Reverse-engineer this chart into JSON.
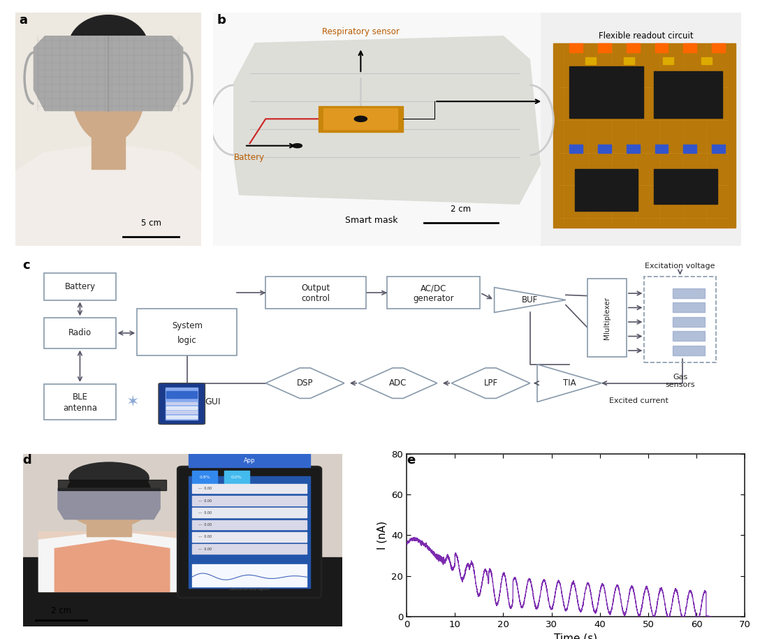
{
  "panel_label_fontsize": 13,
  "panel_label_weight": "bold",
  "bg_color": "#ffffff",
  "line_color_purple": "#7B2AB0",
  "xlabel_e": "Time (s)",
  "ylabel_e": "I (nA)",
  "xlim_e": [
    0,
    70
  ],
  "ylim_e": [
    0,
    80
  ],
  "xticks_e": [
    0,
    10,
    20,
    30,
    40,
    50,
    60,
    70
  ],
  "yticks_e": [
    0,
    20,
    40,
    60,
    80
  ],
  "scale_bar_a": "5 cm",
  "scale_bar_b": "2 cm",
  "scale_bar_d": "2 cm",
  "label_battery": "Battery",
  "label_respiratory": "Respiratory sensor",
  "label_smart_mask": "Smart mask",
  "label_flexible": "Flexible readout circuit",
  "label_excitation": "Excitation voltage",
  "label_excited": "Excited current",
  "label_gas": "Gas\nsensors",
  "orange_color": "#B85C00",
  "bluetooth_color": "#7799CC",
  "box_edge": "#8899AA",
  "box_face": "#ffffff",
  "arrow_color": "#555566",
  "diagram_font": 8.5,
  "sensor_blue": "#99AACC"
}
